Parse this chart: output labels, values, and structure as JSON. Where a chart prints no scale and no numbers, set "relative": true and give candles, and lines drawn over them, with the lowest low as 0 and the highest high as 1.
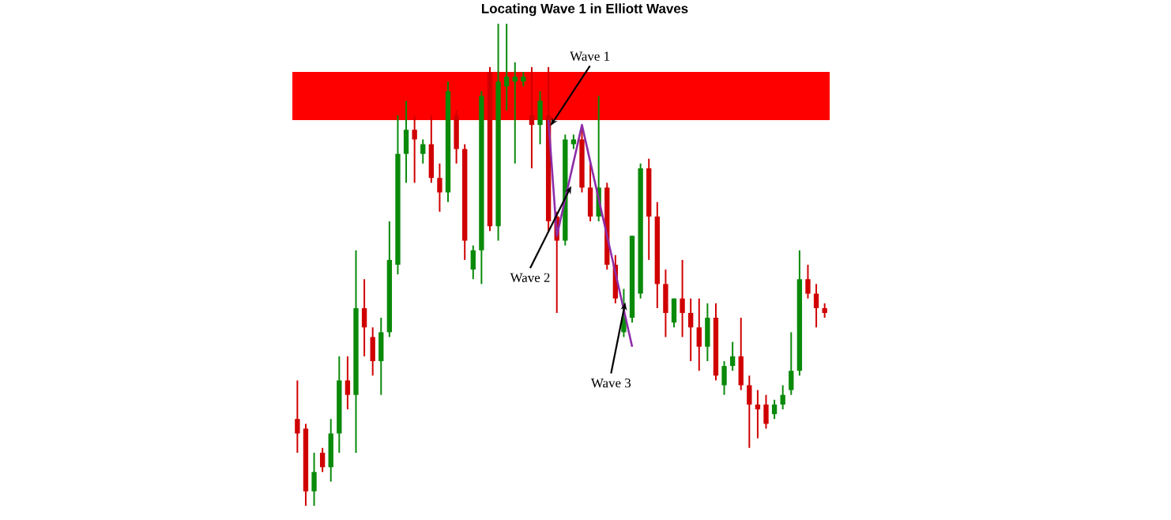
{
  "chart_data": {
    "type": "candlestick",
    "title": "Locating Wave 1 in Elliott Waves",
    "relative": true,
    "categories": [
      null,
      null,
      null,
      null,
      null,
      null,
      null,
      null,
      null,
      null,
      null,
      null,
      null,
      null,
      null,
      null,
      null,
      null,
      null,
      null,
      null,
      null,
      null,
      null,
      null,
      null,
      null,
      null,
      null,
      null,
      null,
      null,
      null,
      null,
      null,
      null,
      null,
      null,
      null,
      null,
      null,
      null,
      null,
      null,
      null,
      null,
      null,
      null,
      null,
      null,
      null,
      null,
      null,
      null,
      null,
      null,
      null,
      null,
      null,
      null,
      null,
      null,
      null,
      null
    ],
    "ohlc": [
      [
        0.18,
        0.26,
        0.11,
        0.15
      ],
      [
        0.16,
        0.17,
        0,
        0.03
      ],
      [
        0.03,
        0.11,
        0,
        0.07
      ],
      [
        0.11,
        0.12,
        0.07,
        0.08
      ],
      [
        0.08,
        0.18,
        0.05,
        0.15
      ],
      [
        0.15,
        0.31,
        0.11,
        0.26
      ],
      [
        0.26,
        0.31,
        0.2,
        0.23
      ],
      [
        0.23,
        0.53,
        0.11,
        0.41
      ],
      [
        0.41,
        0.47,
        0.31,
        0.37
      ],
      [
        0.35,
        0.37,
        0.27,
        0.3
      ],
      [
        0.3,
        0.39,
        0.23,
        0.36
      ],
      [
        0.36,
        0.59,
        0.35,
        0.51
      ],
      [
        0.5,
        0.81,
        0.48,
        0.73
      ],
      [
        0.73,
        0.84,
        0.67,
        0.78
      ],
      [
        0.78,
        0.81,
        0.67,
        0.76
      ],
      [
        0.73,
        0.76,
        0.71,
        0.75
      ],
      [
        0.75,
        0.81,
        0.67,
        0.68
      ],
      [
        0.68,
        0.71,
        0.61,
        0.65
      ],
      [
        0.65,
        0.88,
        0.63,
        0.86
      ],
      [
        0.81,
        0.82,
        0.71,
        0.74
      ],
      [
        0.74,
        0.75,
        0.51,
        0.55
      ],
      [
        0.49,
        0.54,
        0.47,
        0.53
      ],
      [
        0.53,
        0.86,
        0.46,
        0.85
      ],
      [
        0.9,
        0.91,
        0.57,
        0.58
      ],
      [
        0.58,
        1,
        0.55,
        0.88
      ],
      [
        0.87,
        1,
        0.82,
        0.89
      ],
      [
        0.88,
        0.92,
        0.71,
        0.89
      ],
      [
        0.88,
        0.9,
        0.87,
        0.89
      ],
      [
        0.81,
        0.91,
        0.7,
        0.79
      ],
      [
        0.79,
        0.86,
        0.75,
        0.84
      ],
      [
        0.81,
        0.91,
        0.57,
        0.59
      ],
      [
        0.6,
        0.61,
        0.4,
        0.55
      ],
      [
        0.55,
        0.77,
        0.54,
        0.76
      ],
      [
        0.75,
        0.77,
        0.74,
        0.76
      ],
      [
        0.76,
        0.78,
        0.65,
        0.66
      ],
      [
        0.66,
        0.71,
        0.59,
        0.6
      ],
      [
        0.6,
        0.85,
        0.59,
        0.66
      ],
      [
        0.66,
        0.67,
        0.49,
        0.5
      ],
      [
        0.5,
        0.52,
        0.42,
        0.43
      ],
      [
        0.36,
        0.45,
        0.35,
        0.39
      ],
      [
        0.39,
        0.56,
        0.38,
        0.56
      ],
      [
        0.44,
        0.71,
        0.43,
        0.7
      ],
      [
        0.7,
        0.72,
        0.51,
        0.6
      ],
      [
        0.6,
        0.63,
        0.41,
        0.46
      ],
      [
        0.46,
        0.49,
        0.35,
        0.4
      ],
      [
        0.38,
        0.43,
        0.37,
        0.43
      ],
      [
        0.43,
        0.51,
        0.35,
        0.4
      ],
      [
        0.4,
        0.43,
        0.3,
        0.37
      ],
      [
        0.37,
        0.43,
        0.28,
        0.33
      ],
      [
        0.33,
        0.42,
        0.3,
        0.39
      ],
      [
        0.39,
        0.42,
        0.26,
        0.27
      ],
      [
        0.25,
        0.3,
        0.23,
        0.29
      ],
      [
        0.29,
        0.34,
        0.28,
        0.31
      ],
      [
        0.31,
        0.39,
        0.24,
        0.25
      ],
      [
        0.25,
        0.27,
        0.12,
        0.21
      ],
      [
        0.21,
        0.24,
        0.14,
        0.2
      ],
      [
        0.21,
        0.23,
        0.16,
        0.17
      ],
      [
        0.19,
        0.22,
        0.18,
        0.21
      ],
      [
        0.21,
        0.25,
        0.2,
        0.23
      ],
      [
        0.24,
        0.36,
        0.23,
        0.28
      ],
      [
        0.28,
        0.53,
        0.27,
        0.47
      ],
      [
        0.47,
        0.5,
        0.43,
        0.44
      ],
      [
        0.44,
        0.46,
        0.37,
        0.41
      ],
      [
        0.41,
        0.42,
        0.39,
        0.4
      ]
    ],
    "bands": [
      {
        "axis": "y",
        "from": 0.8,
        "to": 0.9,
        "color": "#ff0000"
      }
    ],
    "series": [
      {
        "type": "line",
        "color": "#8e2ca8",
        "values": [
          null,
          null,
          null,
          null,
          null,
          null,
          null,
          null,
          null,
          null,
          null,
          null,
          null,
          null,
          null,
          null,
          null,
          null,
          null,
          null,
          null,
          null,
          null,
          null,
          null,
          null,
          null,
          null,
          null,
          null,
          0.8,
          0.56,
          null,
          null,
          0.79,
          null,
          null,
          null,
          null,
          null,
          0.33,
          null,
          null,
          null,
          null,
          null,
          null,
          null,
          null,
          null,
          null,
          null,
          null,
          null,
          null,
          null,
          null,
          null,
          null,
          null,
          null,
          null,
          null,
          null
        ]
      }
    ],
    "annotations": [
      "Wave 1",
      "Wave 2",
      "Wave 3"
    ]
  }
}
